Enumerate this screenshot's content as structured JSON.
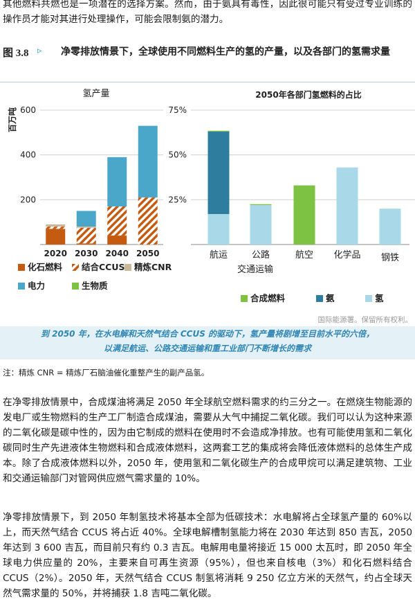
{
  "intro_text": "其他燃料共燃也是一项潜在的选择方案。然而，由于氨具有毒性，因此很可能只有受过专业训练的操作员才能对其进行处理操作，可能会限制氨的潜力。",
  "figure": {
    "number": "图 3.8",
    "arrow": "▹",
    "title": "净零排放情景下，全球使用不同燃料生产的氢的产量，以及各部门的氢需求量",
    "caption_line1": "到 2050 年，在水电解和天然气结合 CCUS 的驱动下，氢产量将剧增至目前水平的六倍，",
    "caption_line2": "以满足航运、公路交通运输和重工业部门不断增长的需求",
    "copyright": "国际能源署。保留所有权利。"
  },
  "chart_data": [
    {
      "type": "bar",
      "stacked": true,
      "title": "氢产量",
      "ylabel": "百万吨",
      "ylim": [
        0,
        600
      ],
      "yticks": [
        200,
        400,
        600
      ],
      "categories": [
        "2020",
        "2030",
        "2040",
        "2050"
      ],
      "series": [
        {
          "name": "化石燃料",
          "color": "#c55a11",
          "values": [
            70,
            5,
            40,
            0
          ]
        },
        {
          "name": "结合CCUS",
          "color": "#c55a11",
          "pattern": "hatch",
          "values": [
            10,
            70,
            130,
            210
          ]
        },
        {
          "name": "精炼CNR",
          "color": "#c9b99a",
          "values": [
            10,
            5,
            0,
            0
          ]
        },
        {
          "name": "电力",
          "color": "#4aa7c9",
          "values": [
            0,
            70,
            220,
            320
          ]
        },
        {
          "name": "生物质",
          "color": "#7dc242",
          "values": [
            0,
            0,
            0,
            0
          ]
        }
      ],
      "legend_placement": "bottom"
    },
    {
      "type": "bar",
      "stacked": true,
      "title": "2050年各部门氢燃料的占比",
      "ylim": [
        0,
        75
      ],
      "yticks": [
        "25%",
        "50%",
        "75%"
      ],
      "ytick_values": [
        25,
        50,
        75
      ],
      "categories": [
        "航运",
        "公路",
        "航空",
        "化学品",
        "钢铁"
      ],
      "group_label": "交通运输",
      "series": [
        {
          "name": "合成燃料",
          "color": "#7dc242",
          "values": [
            0.5,
            0.5,
            33,
            0,
            0
          ]
        },
        {
          "name": "氨",
          "color": "#2e7d9e",
          "values": [
            46,
            0,
            0,
            0,
            0
          ]
        },
        {
          "name": "氢",
          "color": "#a9d8e8",
          "values": [
            17,
            22,
            0,
            43,
            20
          ]
        }
      ],
      "legend_placement": "bottom"
    }
  ],
  "note": "注：精炼 CNR = 精炼厂石脑油催化重整产生的副产品氢。",
  "para1": "在净零排放情景中，合成煤油将满足 2050 年全球航空燃料需求的约三分之一。在燃烧生物能源的发电厂或生物燃料的生产工厂制造合成煤油，需要从大气中捕捉二氧化碳。我们可以认为这种来源的二氧化碳是碳中性的，因为由它制成的燃料在使用时不会造成净排放。也有可能使用氢和二氧化碳同时生产先进液体生物燃料和合成液体燃料，这两套工艺的集成将会降低液体燃料的总体生产成本。除了合成液体燃料以外，2050 年，使用氢和二氧化碳生产的合成甲烷可以满足建筑物、工业和交通运输部门对管网供应燃气需求量的 10%。",
  "para2": "净零排放情景下，到 2050 年制氢技术将基本全部为低碳技术：水电解将占全球氢产量的 60%以上，而天然气结合 CCUS 将占近 40%。全球电解槽制氢能力将在 2030 年达到 850 吉瓦，2050 年达到 3 600 吉瓦，而目前只有约 0.3 吉瓦。电解用电量将接近 15 000 太瓦时，即 2050 年全球电力供应量的 20%，主要来自可再生资源（95%），但也来自核电（3%）和化石燃料结合 CCUS（2%）。2050 年，天然气结合 CCUS 制氢将消耗 9 250 亿立方米的天然气，约占全球天然气需求量的 50%，并将捕获 1.8 吉吨二氧化碳。"
}
